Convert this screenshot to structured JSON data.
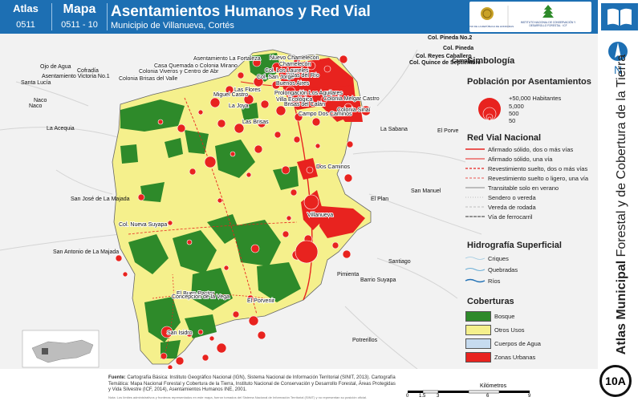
{
  "header": {
    "atlas_label": "Atlas",
    "atlas_code": "0511",
    "mapa_label": "Mapa",
    "mapa_code": "0511 - 10",
    "title": "Asentamientos Humanos y Red Vial",
    "subtitle": "Municipio de Villanueva, Cortés"
  },
  "institutions": {
    "left_text": "GOBIERNO DE LA REPÚBLICA DE HONDURAS",
    "right_text": "INSTITUTO NACIONAL DE CONSERVACIÓN Y DESARROLLO FORESTAL, ÁREAS PROTEGIDAS Y VIDA SILVESTRE ICF"
  },
  "side": {
    "north_letter": "N",
    "vertical_title_bold": "Atlas Municipal",
    "vertical_title_rest": " Forestal y de Cobertura de la Tierra",
    "badge": "10A"
  },
  "legend": {
    "title": "Simbología",
    "population_title": "Población por Asentamientos",
    "population_sizes": [
      "+50,000 Habitantes",
      "5,000",
      "500",
      "50"
    ],
    "roads_title": "Red Vial Nacional",
    "roads": [
      "Afirmado sólido, dos o más vías",
      "Afirmado sólido, una vía",
      "Revestimiento suelto, dos o más vías",
      "Revestimiento suelto o ligero, una vía",
      "Transitable solo en verano",
      "Sendero o vereda",
      "Vereda de rodada",
      "Vía de ferrocarril"
    ],
    "hydro_title": "Hidrografía Superficial",
    "hydro": [
      "Criques",
      "Quebradas",
      "Ríos"
    ],
    "cover_title": "Coberturas",
    "cover": [
      {
        "label": "Bosque",
        "color": "#2e8a2a"
      },
      {
        "label": "Otros Usos",
        "color": "#f5f08c"
      },
      {
        "label": "Cuerpos de Agua",
        "color": "#c6dbef"
      },
      {
        "label": "Zonas Urbanas",
        "color": "#e8231f"
      }
    ]
  },
  "map_labels": {
    "outside": [
      "Col. Pineda No.2",
      "Col. Pineda",
      "Col. Reyes Caballero",
      "Col. Quince de Septiembre",
      "Campo",
      "Ojo de Agua",
      "Cofradía",
      "Asentamiento Victoria No.1",
      "Santa Lucía",
      "Naco",
      "Naco",
      "La Acequia",
      "La Sabana",
      "El Porve",
      "San José de La Majada",
      "El Plan",
      "San Manuel",
      "San Antonio de La Majada",
      "Santiago",
      "Pimienta",
      "Barrio Suyapa",
      "Potrerillos"
    ],
    "inside": [
      "Asentamiento La Fortaleza",
      "Nuevo Chamelecón",
      "Casa Quemada o Colonia Mirano",
      "Colonia Viveros y Centro de Abr",
      "Colonia Brisas del Valle",
      "Villas del Río",
      "Chamelecón",
      "Colonia Melgar Castro",
      "Campo Dos Caminos",
      "Colonia Sinaí",
      "Dos Caminos",
      "Villanueva",
      "Col. Nueva Suyapa",
      "El Buen Pastor",
      "Concepción de la Vega",
      "El Porvenir",
      "San Isidro",
      "Col. Los Laureles",
      "Buenos Aires",
      "Las Flores",
      "Prolongación Los Aguilares",
      "Miguel Castro",
      "Brisas del Calán",
      "Villa Ecológica",
      "La Joya",
      "Las Brisas",
      "Col. San Jorge"
    ]
  },
  "footer": {
    "source_label": "Fuente:",
    "source_text": "Cartografía Básica: Instituto Geográfico Nacional (IGN), Sistema Nacional de Información Territorial (SINIT, 2013). Cartografía Temática: Mapa Nacional Forestal y Cobertura de la Tierra, Instituto Nacional de Conservación y Desarrollo Forestal, Áreas Protegidas y Vida Silvestre (ICF, 2014), Asentamientos Humanos INE, 2001.",
    "note_text": "Nota: Los límites administrativos y fronteras representados en este mapa, fueron tomados del Sistema Nacional de Información Territorial (SINIT) y no representan su posición oficial."
  },
  "scale": {
    "ticks": [
      "0",
      "1.5",
      "3",
      "6",
      "9"
    ],
    "unit": "Kilómetros"
  },
  "colors": {
    "header": "#1d6fb3",
    "forest": "#2e8a2a",
    "other_use": "#f5f08c",
    "urban": "#e8231f",
    "background": "#f2f2f2"
  }
}
